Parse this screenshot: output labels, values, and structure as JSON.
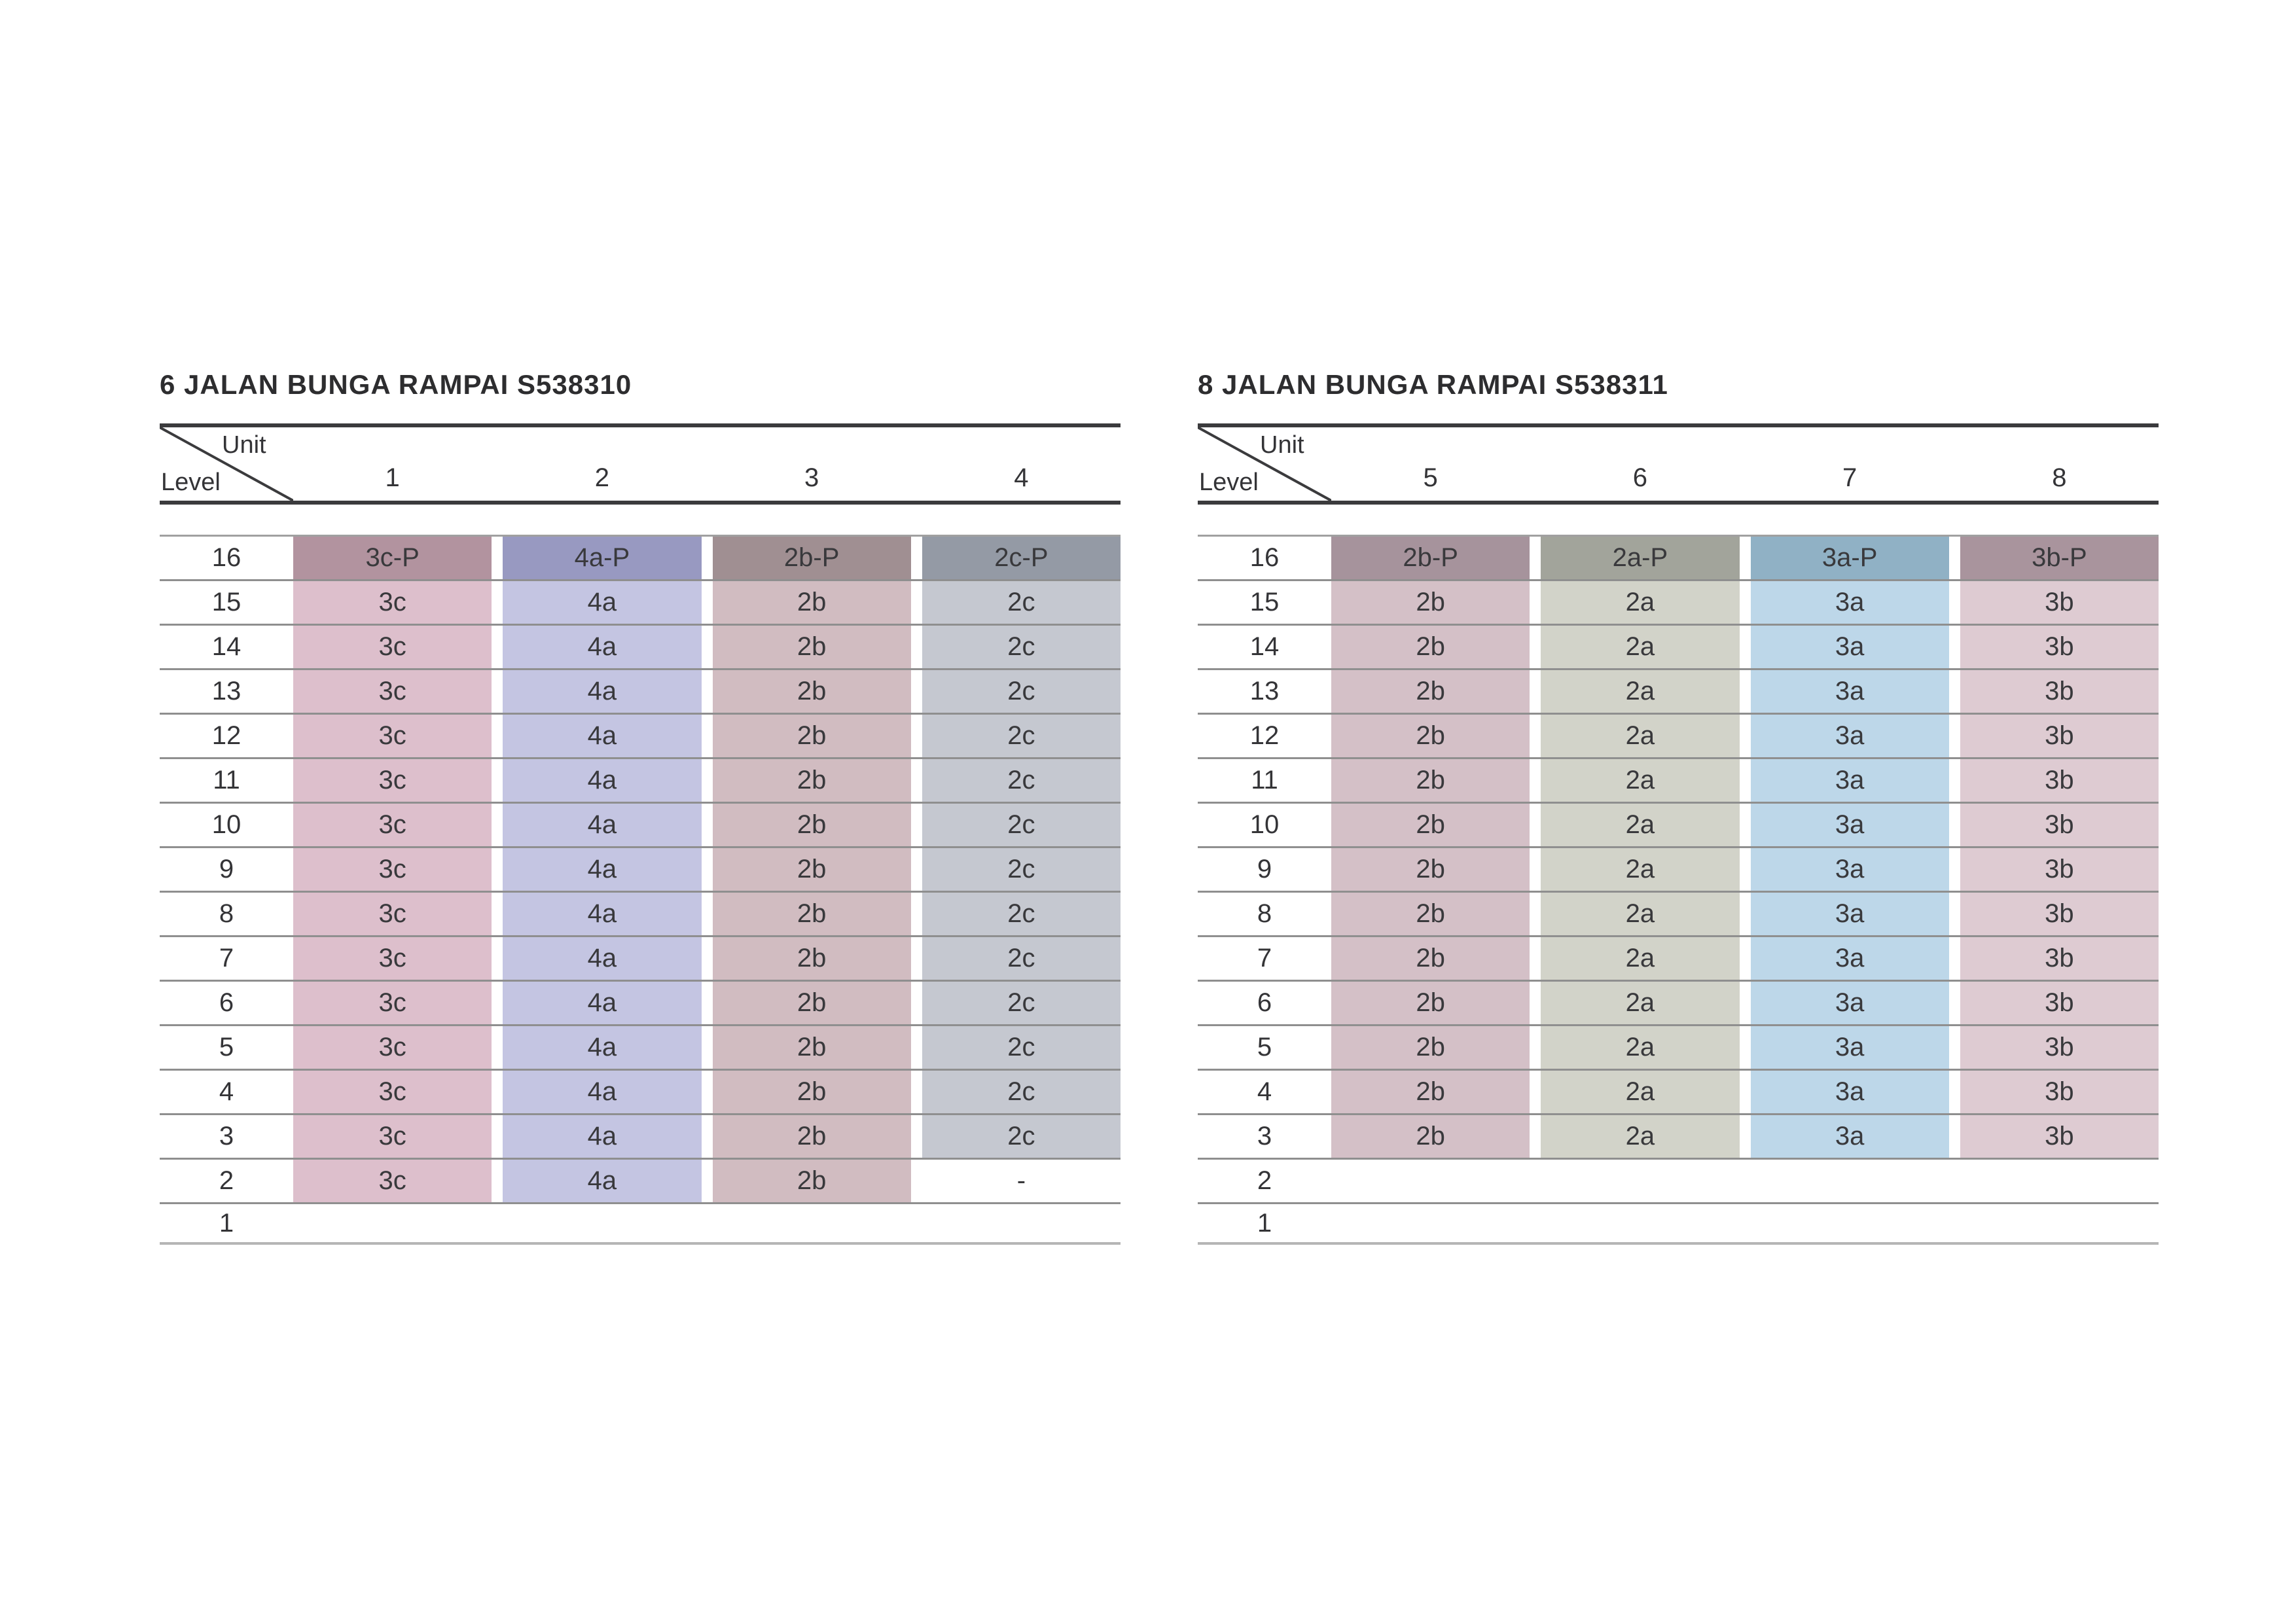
{
  "chart_data": [
    {
      "type": "table",
      "title": "6 JALAN BUNGA RAMPAI S538310",
      "corner": {
        "top": "Unit",
        "bottom": "Level"
      },
      "columns": [
        {
          "label": "1",
          "light": "#ddbfcc",
          "dark": "#b2939f"
        },
        {
          "label": "2",
          "light": "#c4c5e2",
          "dark": "#9899c1"
        },
        {
          "label": "3",
          "light": "#d1bcc1",
          "dark": "#a08f92"
        },
        {
          "label": "4",
          "light": "#c5c8d0",
          "dark": "#949aa5"
        }
      ],
      "rows": [
        {
          "level": "16",
          "shade": "dark",
          "values": [
            "3c-P",
            "4a-P",
            "2b-P",
            "2c-P"
          ]
        },
        {
          "level": "15",
          "shade": "light",
          "values": [
            "3c",
            "4a",
            "2b",
            "2c"
          ]
        },
        {
          "level": "14",
          "shade": "light",
          "values": [
            "3c",
            "4a",
            "2b",
            "2c"
          ]
        },
        {
          "level": "13",
          "shade": "light",
          "values": [
            "3c",
            "4a",
            "2b",
            "2c"
          ]
        },
        {
          "level": "12",
          "shade": "light",
          "values": [
            "3c",
            "4a",
            "2b",
            "2c"
          ]
        },
        {
          "level": "11",
          "shade": "light",
          "values": [
            "3c",
            "4a",
            "2b",
            "2c"
          ]
        },
        {
          "level": "10",
          "shade": "light",
          "values": [
            "3c",
            "4a",
            "2b",
            "2c"
          ]
        },
        {
          "level": "9",
          "shade": "light",
          "values": [
            "3c",
            "4a",
            "2b",
            "2c"
          ]
        },
        {
          "level": "8",
          "shade": "light",
          "values": [
            "3c",
            "4a",
            "2b",
            "2c"
          ]
        },
        {
          "level": "7",
          "shade": "light",
          "values": [
            "3c",
            "4a",
            "2b",
            "2c"
          ]
        },
        {
          "level": "6",
          "shade": "light",
          "values": [
            "3c",
            "4a",
            "2b",
            "2c"
          ]
        },
        {
          "level": "5",
          "shade": "light",
          "values": [
            "3c",
            "4a",
            "2b",
            "2c"
          ]
        },
        {
          "level": "4",
          "shade": "light",
          "values": [
            "3c",
            "4a",
            "2b",
            "2c"
          ]
        },
        {
          "level": "3",
          "shade": "light",
          "values": [
            "3c",
            "4a",
            "2b",
            "2c"
          ]
        },
        {
          "level": "2",
          "shade": "light",
          "values": [
            "3c",
            "4a",
            "2b",
            "-"
          ]
        },
        {
          "level": "1",
          "shade": "light",
          "values": [
            "",
            "",
            "",
            ""
          ]
        }
      ]
    },
    {
      "type": "table",
      "title": "8 JALAN BUNGA RAMPAI S538311",
      "corner": {
        "top": "Unit",
        "bottom": "Level"
      },
      "columns": [
        {
          "label": "5",
          "light": "#d4c0c7",
          "dark": "#a6939c"
        },
        {
          "label": "6",
          "light": "#d2d3c9",
          "dark": "#a2a49b"
        },
        {
          "label": "7",
          "light": "#bdd7e9",
          "dark": "#90b1c5"
        },
        {
          "label": "8",
          "light": "#decbd2",
          "dark": "#a9949d"
        }
      ],
      "rows": [
        {
          "level": "16",
          "shade": "dark",
          "values": [
            "2b-P",
            "2a-P",
            "3a-P",
            "3b-P"
          ]
        },
        {
          "level": "15",
          "shade": "light",
          "values": [
            "2b",
            "2a",
            "3a",
            "3b"
          ]
        },
        {
          "level": "14",
          "shade": "light",
          "values": [
            "2b",
            "2a",
            "3a",
            "3b"
          ]
        },
        {
          "level": "13",
          "shade": "light",
          "values": [
            "2b",
            "2a",
            "3a",
            "3b"
          ]
        },
        {
          "level": "12",
          "shade": "light",
          "values": [
            "2b",
            "2a",
            "3a",
            "3b"
          ]
        },
        {
          "level": "11",
          "shade": "light",
          "values": [
            "2b",
            "2a",
            "3a",
            "3b"
          ]
        },
        {
          "level": "10",
          "shade": "light",
          "values": [
            "2b",
            "2a",
            "3a",
            "3b"
          ]
        },
        {
          "level": "9",
          "shade": "light",
          "values": [
            "2b",
            "2a",
            "3a",
            "3b"
          ]
        },
        {
          "level": "8",
          "shade": "light",
          "values": [
            "2b",
            "2a",
            "3a",
            "3b"
          ]
        },
        {
          "level": "7",
          "shade": "light",
          "values": [
            "2b",
            "2a",
            "3a",
            "3b"
          ]
        },
        {
          "level": "6",
          "shade": "light",
          "values": [
            "2b",
            "2a",
            "3a",
            "3b"
          ]
        },
        {
          "level": "5",
          "shade": "light",
          "values": [
            "2b",
            "2a",
            "3a",
            "3b"
          ]
        },
        {
          "level": "4",
          "shade": "light",
          "values": [
            "2b",
            "2a",
            "3a",
            "3b"
          ]
        },
        {
          "level": "3",
          "shade": "light",
          "values": [
            "2b",
            "2a",
            "3a",
            "3b"
          ]
        },
        {
          "level": "2",
          "shade": "light",
          "values": [
            "",
            "",
            "",
            ""
          ]
        },
        {
          "level": "1",
          "shade": "light",
          "values": [
            "",
            "",
            "",
            ""
          ]
        }
      ]
    }
  ]
}
